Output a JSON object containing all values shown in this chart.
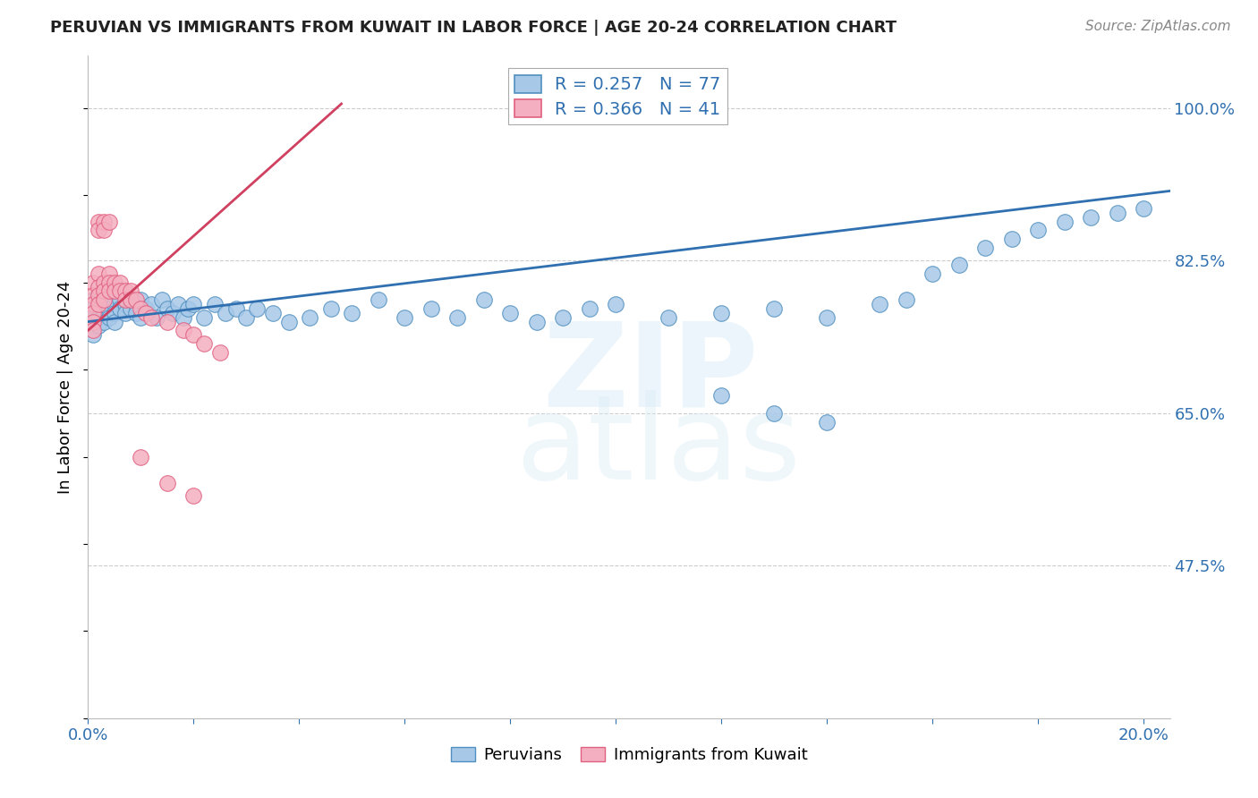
{
  "title": "PERUVIAN VS IMMIGRANTS FROM KUWAIT IN LABOR FORCE | AGE 20-24 CORRELATION CHART",
  "source": "Source: ZipAtlas.com",
  "ylabel": "In Labor Force | Age 20-24",
  "xlim": [
    0.0,
    0.205
  ],
  "ylim": [
    0.3,
    1.06
  ],
  "ytick_positions": [
    0.475,
    0.65,
    0.825,
    1.0
  ],
  "ytick_labels": [
    "47.5%",
    "65.0%",
    "82.5%",
    "100.0%"
  ],
  "xtick_positions": [
    0.0,
    0.02,
    0.04,
    0.06,
    0.08,
    0.1,
    0.12,
    0.14,
    0.16,
    0.18,
    0.2
  ],
  "xtick_labels": [
    "0.0%",
    "",
    "",
    "",
    "",
    "",
    "",
    "",
    "",
    "",
    "20.0%"
  ],
  "blue_face_color": "#a8c8e8",
  "pink_face_color": "#f4b0c0",
  "blue_edge_color": "#5090c0",
  "pink_edge_color": "#e06080",
  "blue_line_color": "#3070b0",
  "pink_line_color": "#d04060",
  "legend_label_blue": "Peruvians",
  "legend_label_pink": "Immigrants from Kuwait",
  "legend_R_blue": "R = 0.257",
  "legend_N_blue": "N = 77",
  "legend_R_pink": "R = 0.366",
  "legend_N_pink": "N = 41",
  "blue_trend_x0": 0.0,
  "blue_trend_x1": 0.205,
  "blue_trend_y0": 0.755,
  "blue_trend_y1": 0.905,
  "pink_trend_x0": 0.0,
  "pink_trend_x1": 0.048,
  "pink_trend_y0": 0.745,
  "pink_trend_y1": 1.005,
  "blue_x": [
    0.001,
    0.001,
    0.001,
    0.001,
    0.001,
    0.002,
    0.002,
    0.002,
    0.002,
    0.003,
    0.003,
    0.003,
    0.004,
    0.004,
    0.004,
    0.005,
    0.005,
    0.005,
    0.006,
    0.006,
    0.007,
    0.007,
    0.008,
    0.008,
    0.009,
    0.009,
    0.01,
    0.01,
    0.011,
    0.012,
    0.013,
    0.014,
    0.015,
    0.016,
    0.017,
    0.018,
    0.019,
    0.02,
    0.022,
    0.024,
    0.026,
    0.028,
    0.03,
    0.032,
    0.035,
    0.038,
    0.042,
    0.046,
    0.05,
    0.055,
    0.06,
    0.065,
    0.07,
    0.075,
    0.08,
    0.085,
    0.09,
    0.095,
    0.1,
    0.11,
    0.12,
    0.13,
    0.14,
    0.15,
    0.155,
    0.16,
    0.165,
    0.17,
    0.175,
    0.18,
    0.185,
    0.19,
    0.195,
    0.2,
    0.12,
    0.13,
    0.14
  ],
  "blue_y": [
    0.78,
    0.77,
    0.76,
    0.75,
    0.74,
    0.78,
    0.77,
    0.76,
    0.75,
    0.775,
    0.765,
    0.755,
    0.78,
    0.77,
    0.76,
    0.775,
    0.765,
    0.755,
    0.78,
    0.77,
    0.775,
    0.765,
    0.78,
    0.77,
    0.775,
    0.765,
    0.78,
    0.76,
    0.77,
    0.775,
    0.76,
    0.78,
    0.77,
    0.765,
    0.775,
    0.76,
    0.77,
    0.775,
    0.76,
    0.775,
    0.765,
    0.77,
    0.76,
    0.77,
    0.765,
    0.755,
    0.76,
    0.77,
    0.765,
    0.78,
    0.76,
    0.77,
    0.76,
    0.78,
    0.765,
    0.755,
    0.76,
    0.77,
    0.775,
    0.76,
    0.765,
    0.77,
    0.76,
    0.775,
    0.78,
    0.81,
    0.82,
    0.84,
    0.85,
    0.86,
    0.87,
    0.875,
    0.88,
    0.885,
    0.67,
    0.65,
    0.64
  ],
  "pink_x": [
    0.001,
    0.001,
    0.001,
    0.001,
    0.001,
    0.001,
    0.002,
    0.002,
    0.002,
    0.002,
    0.003,
    0.003,
    0.003,
    0.004,
    0.004,
    0.004,
    0.005,
    0.005,
    0.006,
    0.006,
    0.007,
    0.007,
    0.008,
    0.008,
    0.009,
    0.01,
    0.011,
    0.012,
    0.015,
    0.018,
    0.02,
    0.022,
    0.025,
    0.002,
    0.002,
    0.003,
    0.003,
    0.004,
    0.01,
    0.015,
    0.02
  ],
  "pink_y": [
    0.8,
    0.785,
    0.775,
    0.765,
    0.755,
    0.745,
    0.81,
    0.795,
    0.785,
    0.775,
    0.8,
    0.79,
    0.78,
    0.81,
    0.8,
    0.79,
    0.8,
    0.79,
    0.8,
    0.79,
    0.79,
    0.78,
    0.79,
    0.78,
    0.78,
    0.77,
    0.765,
    0.76,
    0.755,
    0.745,
    0.74,
    0.73,
    0.72,
    0.87,
    0.86,
    0.87,
    0.86,
    0.87,
    0.6,
    0.57,
    0.555
  ]
}
